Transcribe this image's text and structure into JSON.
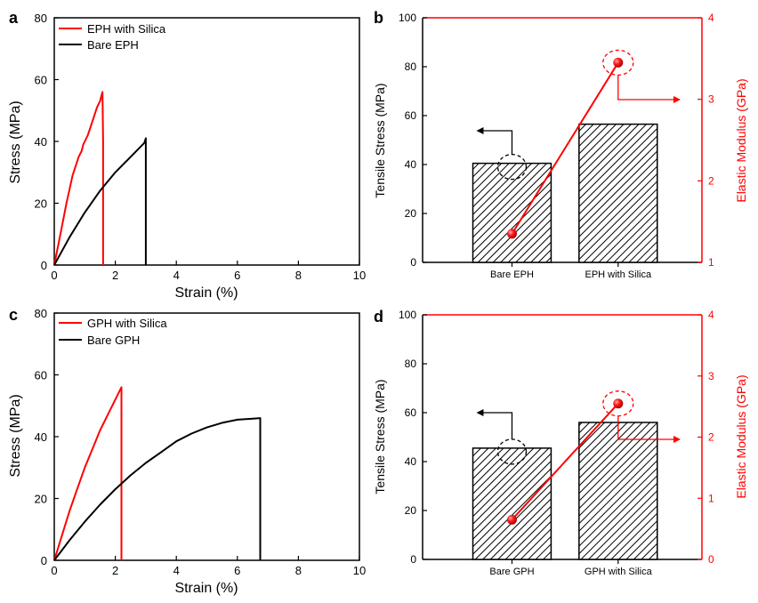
{
  "panel_labels": [
    "a",
    "b",
    "c",
    "d"
  ],
  "colors": {
    "silica": "#ff0000",
    "bare": "#000000",
    "bar_fill": "#ffffff",
    "hatch": "#000000"
  },
  "chart_data": [
    {
      "panel": "a",
      "type": "line",
      "xlabel": "Strain (%)",
      "ylabel": "Stress (MPa)",
      "xlim": [
        0,
        10
      ],
      "ylim": [
        0,
        80
      ],
      "xticks": [
        0,
        2,
        4,
        6,
        8,
        10
      ],
      "yticks": [
        0,
        20,
        40,
        60,
        80
      ],
      "legend_position": "top-left",
      "series": [
        {
          "name": "EPH with Silica",
          "color": "#ff0000",
          "x": [
            0,
            0.2,
            0.4,
            0.6,
            0.8,
            0.9,
            0.95,
            1.0,
            1.1,
            1.2,
            1.3,
            1.4,
            1.5,
            1.58,
            1.6,
            1.6
          ],
          "y": [
            0,
            10,
            20,
            29,
            35,
            37,
            39,
            40,
            42,
            45,
            48,
            51,
            53,
            56,
            40,
            0
          ]
        },
        {
          "name": "Bare EPH",
          "color": "#000000",
          "x": [
            0,
            0.5,
            1.0,
            1.5,
            2.0,
            2.5,
            2.95,
            3.0,
            3.0
          ],
          "y": [
            0,
            9,
            17,
            24,
            30,
            35,
            39.5,
            41,
            0
          ]
        }
      ]
    },
    {
      "panel": "b",
      "type": "bar",
      "categories": [
        "Bare EPH",
        "EPH with Silica"
      ],
      "ylabel": "Tensile Stress (MPa)",
      "y2label": "Elastic Modulus (GPa)",
      "ylim": [
        0,
        100
      ],
      "y2lim": [
        1,
        4
      ],
      "yticks": [
        0,
        20,
        40,
        60,
        80,
        100
      ],
      "y2ticks": [
        1,
        2,
        3,
        4
      ],
      "values": [
        40.5,
        56.5
      ],
      "modulus": [
        1.35,
        3.45
      ]
    },
    {
      "panel": "c",
      "type": "line",
      "xlabel": "Strain (%)",
      "ylabel": "Stress (MPa)",
      "xlim": [
        0,
        10
      ],
      "ylim": [
        0,
        80
      ],
      "xticks": [
        0,
        2,
        4,
        6,
        8,
        10
      ],
      "yticks": [
        0,
        20,
        40,
        60,
        80
      ],
      "legend_position": "top-left",
      "series": [
        {
          "name": "GPH with Silica",
          "color": "#ff0000",
          "x": [
            0,
            0.25,
            0.5,
            0.75,
            1.0,
            1.25,
            1.5,
            1.75,
            2.0,
            2.2,
            2.2
          ],
          "y": [
            0,
            8,
            16,
            23,
            30,
            36,
            42,
            47,
            52,
            56,
            0
          ]
        },
        {
          "name": "Bare GPH",
          "color": "#000000",
          "x": [
            0,
            0.5,
            1.0,
            1.5,
            2.0,
            2.5,
            3.0,
            3.5,
            4.0,
            4.5,
            5.0,
            5.5,
            6.0,
            6.5,
            6.75,
            6.75
          ],
          "y": [
            0,
            6.5,
            12.5,
            18,
            23,
            27.5,
            31.5,
            35,
            38.5,
            41,
            43,
            44.5,
            45.5,
            45.8,
            46,
            0
          ]
        }
      ]
    },
    {
      "panel": "d",
      "type": "bar",
      "categories": [
        "Bare GPH",
        "GPH with Silica"
      ],
      "ylabel": "Tensile Stress (MPa)",
      "y2label": "Elastic Modulus (GPa)",
      "ylim": [
        0,
        100
      ],
      "y2lim": [
        0,
        4
      ],
      "yticks": [
        0,
        20,
        40,
        60,
        80,
        100
      ],
      "y2ticks": [
        0,
        1,
        2,
        3,
        4
      ],
      "values": [
        45.5,
        56
      ],
      "modulus": [
        0.65,
        2.55
      ]
    }
  ]
}
